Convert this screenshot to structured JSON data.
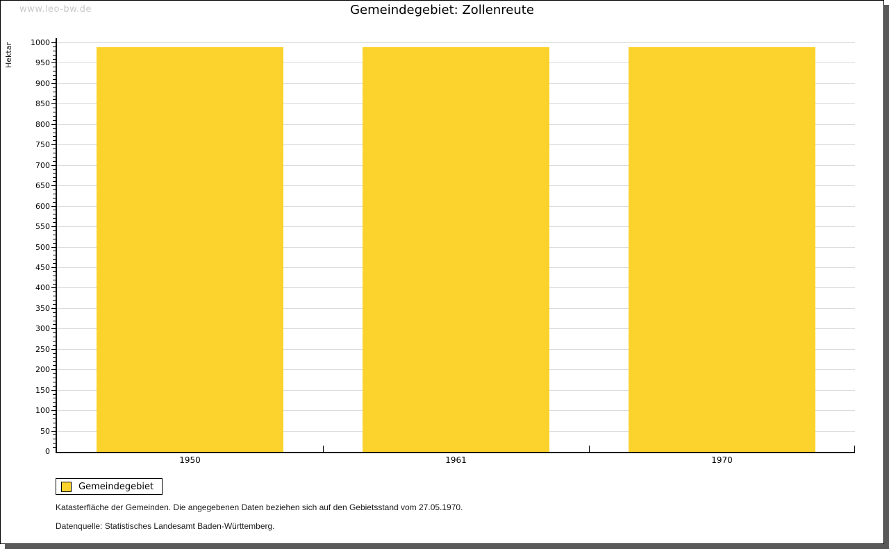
{
  "watermark": "www.leo-bw.de",
  "chart_data": {
    "type": "bar",
    "title": "Gemeindegebiet: Zollenreute",
    "xlabel": "",
    "ylabel": "Hektar",
    "categories": [
      "1950",
      "1961",
      "1970"
    ],
    "series": [
      {
        "name": "Gemeindegebiet",
        "values": [
          990,
          990,
          990
        ],
        "color": "#FCD32D"
      }
    ],
    "ylim": [
      0,
      1000
    ],
    "ytick_step": 50,
    "yminor_step": 10,
    "grid": "horizontal-major",
    "gridline_color": "#dcdcdc",
    "legend_position": "bottom-left"
  },
  "legend": {
    "label": "Gemeindegebiet",
    "swatch_color": "#FCD32D"
  },
  "footer": {
    "note": "Katasterfläche der Gemeinden. Die angegebenen Daten beziehen sich auf den Gebietsstand vom 27.05.1970.",
    "source": "Datenquelle: Statistisches Landesamt Baden-Württemberg."
  },
  "colors": {
    "bar": "#FCD32D",
    "gridline": "#dcdcdc",
    "axis": "#000000",
    "shadow": "#595959",
    "watermark": "#c9c9c9"
  }
}
